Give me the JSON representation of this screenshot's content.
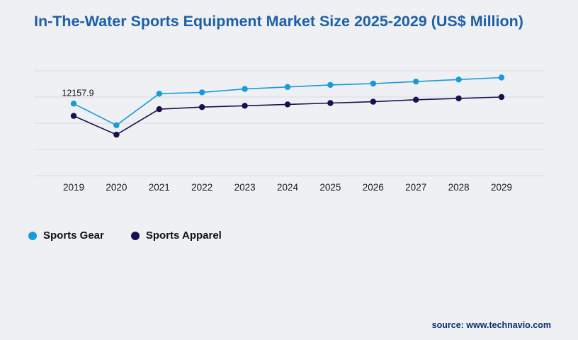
{
  "title": "In-The-Water Sports Equipment Market Size 2025-2029 (US$ Million)",
  "source": "source: www.technavio.com",
  "chart_data": {
    "type": "line",
    "title": "In-The-Water Sports Equipment Market Size 2025-2029 (US$ Million)",
    "xlabel": "",
    "ylabel": "US$ Million",
    "categories": [
      "2019",
      "2020",
      "2021",
      "2022",
      "2023",
      "2024",
      "2025",
      "2026",
      "2027",
      "2028",
      "2029"
    ],
    "series": [
      {
        "name": "Sports Gear",
        "color": "#189bd9",
        "values": [
          12157.9,
          10550,
          12900,
          13000,
          13250,
          13400,
          13550,
          13650,
          13800,
          13950,
          14100
        ]
      },
      {
        "name": "Sports Apparel",
        "color": "#181050",
        "values": [
          11250,
          9850,
          11750,
          11900,
          12000,
          12100,
          12200,
          12300,
          12450,
          12550,
          12650
        ]
      }
    ],
    "annotation": {
      "text": "12157.9",
      "series": "Sports Gear",
      "category": "2019"
    },
    "ylim": [
      6800,
      14600
    ],
    "grid": true,
    "gridline_count": 5,
    "legend_position": "bottom-left",
    "colors": {
      "background": "#eef0f3",
      "gridline": "#d8dbdf",
      "title": "#1d5fa8",
      "tick_label": "#1a1a1a",
      "source_text": "#0b2e6b"
    }
  }
}
